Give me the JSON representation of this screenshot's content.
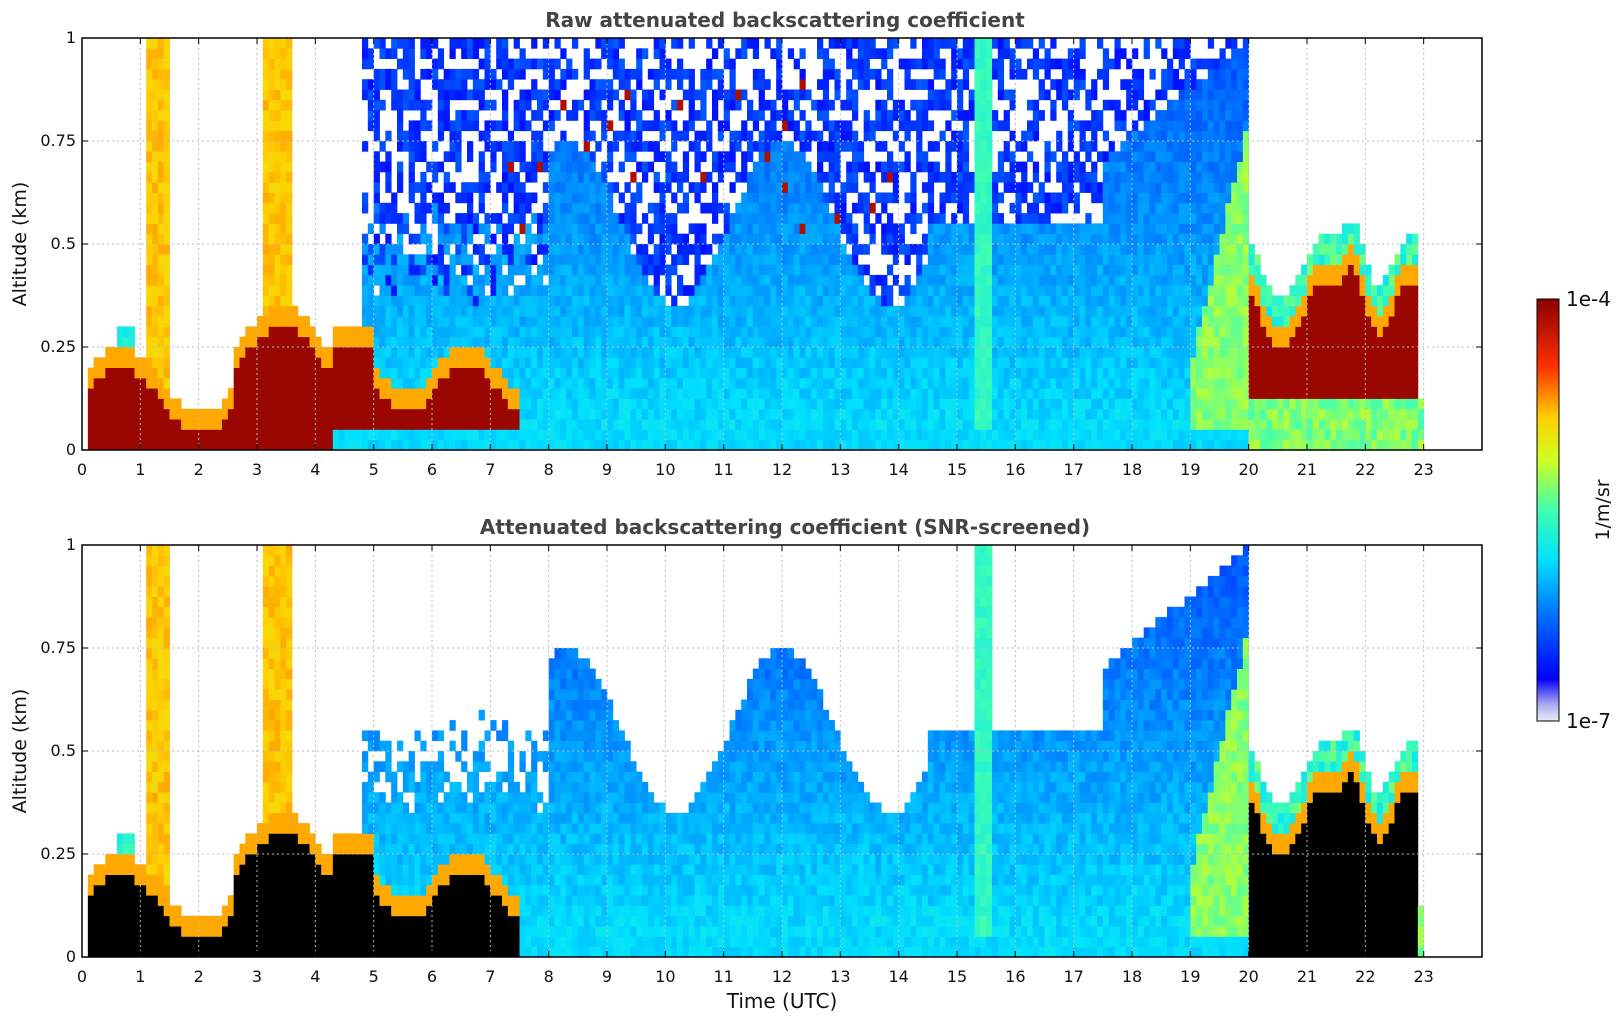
{
  "chart_data": [
    {
      "type": "heatmap",
      "title": "Raw attenuated backscattering coefficient",
      "xlabel": "",
      "ylabel": "Altitude (km)",
      "xlim": [
        0,
        24
      ],
      "ylim": [
        0,
        1
      ],
      "x_ticks": [
        "0",
        "1",
        "2",
        "3",
        "4",
        "5",
        "6",
        "7",
        "8",
        "9",
        "10",
        "11",
        "12",
        "13",
        "14",
        "15",
        "16",
        "17",
        "18",
        "19",
        "20",
        "21",
        "22",
        "23"
      ],
      "y_ticks": [
        "0",
        "0.25",
        "0.5",
        "0.75",
        "1"
      ],
      "grid": true,
      "screened": false
    },
    {
      "type": "heatmap",
      "title": "Attenuated backscattering coefficient (SNR-screened)",
      "xlabel": "Time (UTC)",
      "ylabel": "Altitude (km)",
      "xlim": [
        0,
        24
      ],
      "ylim": [
        0,
        1
      ],
      "x_ticks": [
        "0",
        "1",
        "2",
        "3",
        "4",
        "5",
        "6",
        "7",
        "8",
        "9",
        "10",
        "11",
        "12",
        "13",
        "14",
        "15",
        "16",
        "17",
        "18",
        "19",
        "20",
        "21",
        "22",
        "23"
      ],
      "y_ticks": [
        "0",
        "0.25",
        "0.5",
        "0.75",
        "1"
      ],
      "grid": true,
      "screened": true
    }
  ],
  "colorbar": {
    "label": "1/m/sr",
    "max_label": "1e-4",
    "min_label": "1e-7",
    "scale": "log",
    "colormap": "jet"
  },
  "colors": {
    "saturated": "#000000",
    "grid": "#bbbbbb",
    "title": "#444444"
  }
}
